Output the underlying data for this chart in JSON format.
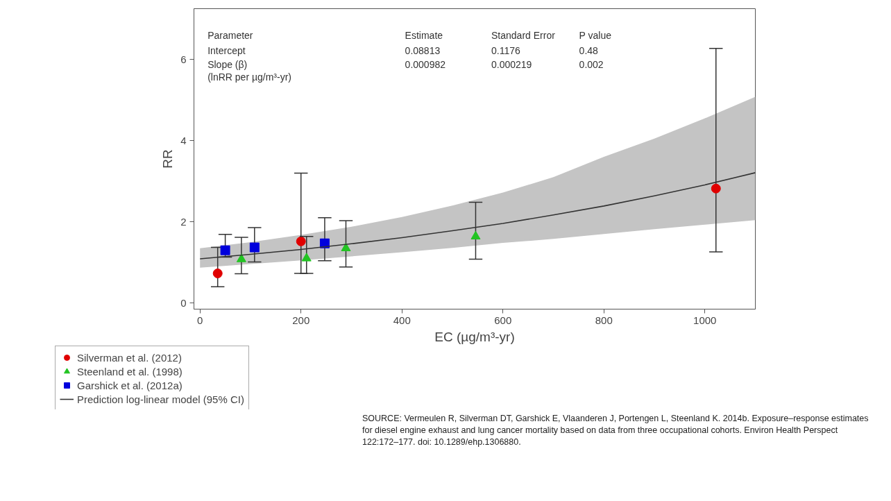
{
  "chart_data": {
    "type": "scatter",
    "xlabel": "EC (µg/m³-yr)",
    "ylabel": "RR",
    "xlim": [
      -12,
      1100
    ],
    "ylim": [
      -0.15,
      7.25
    ],
    "xticks": [
      0,
      200,
      400,
      600,
      800,
      1000
    ],
    "yticks": [
      0,
      2,
      4,
      6
    ],
    "grid": false,
    "legend": "bottom",
    "series": [
      {
        "name": "Silverman et al. (2012)",
        "color": "#e00000",
        "marker": "circle",
        "x": [
          35,
          200,
          1022
        ],
        "values": [
          0.73,
          1.52,
          2.82
        ],
        "errors": [
          [
            0.4,
            1.37
          ],
          [
            0.73,
            3.2
          ],
          [
            1.26,
            6.27
          ]
        ]
      },
      {
        "name": "Steenland et al. (1998)",
        "color": "#22c422",
        "marker": "triangle",
        "x": [
          82,
          211,
          289,
          546
        ],
        "values": [
          1.08,
          1.1,
          1.35,
          1.64
        ],
        "errors": [
          [
            0.72,
            1.62
          ],
          [
            0.73,
            1.64
          ],
          [
            0.89,
            2.03
          ],
          [
            1.08,
            2.48
          ]
        ]
      },
      {
        "name": "Garshick et al. (2012a)",
        "color": "#0000dd",
        "marker": "square",
        "x": [
          50,
          108,
          247
        ],
        "values": [
          1.3,
          1.37,
          1.47
        ],
        "errors": [
          [
            1.13,
            1.69
          ],
          [
            1.01,
            1.86
          ],
          [
            1.04,
            2.1
          ]
        ]
      },
      {
        "name": "Prediction log-linear model (95% CI)",
        "type": "line",
        "color": "#333333",
        "marker": "none",
        "x": [
          0,
          100,
          200,
          300,
          400,
          500,
          600,
          700,
          800,
          900,
          1000,
          1100
        ],
        "values": [
          1.09,
          1.2,
          1.32,
          1.46,
          1.61,
          1.78,
          1.96,
          2.17,
          2.39,
          2.64,
          2.91,
          3.21
        ],
        "lower": [
          0.87,
          0.96,
          1.05,
          1.15,
          1.25,
          1.36,
          1.48,
          1.58,
          1.7,
          1.82,
          1.93,
          2.04
        ],
        "upper": [
          1.35,
          1.5,
          1.68,
          1.88,
          2.12,
          2.4,
          2.72,
          3.1,
          3.6,
          4.05,
          4.55,
          5.08
        ]
      }
    ],
    "annotations": [
      "Parameter",
      "Estimate",
      "Standard Error",
      "P value",
      "Intercept",
      "0.08813",
      "0.1176",
      "0.48",
      "Slope (β)",
      "0.000982",
      "0.000219",
      "0.002",
      "(lnRR per µg/m³-yr)",
      "SOURCE: Vermeulen R, Silverman DT, Garshick E, Vlaanderen J, Portengen L, Steenland K. 2014b. Exposure–response estimates for diesel engine exhaust and lung cancer mortality based on data from three occupational cohorts. Environ Health Perspect 122:172–177. doi: 10.1289/ehp.1306880."
    ]
  }
}
